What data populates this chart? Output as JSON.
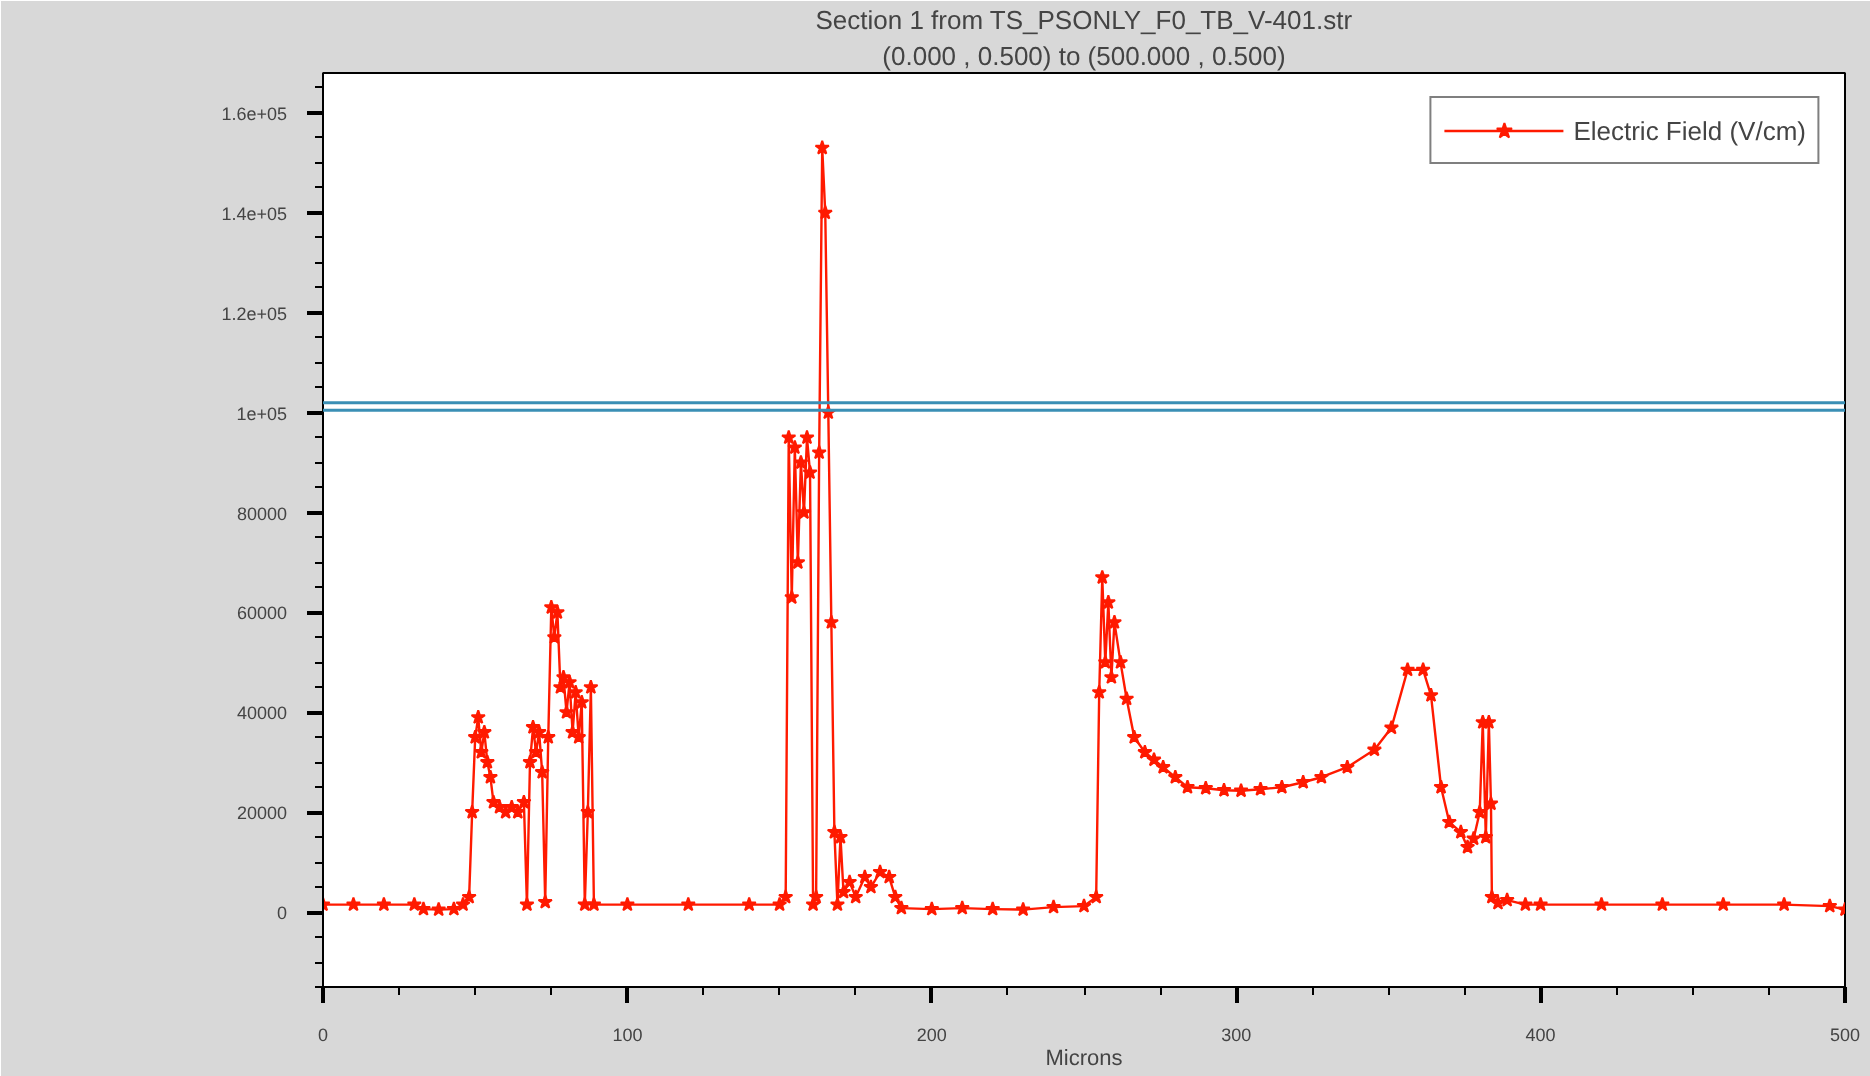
{
  "chart_data": {
    "type": "line",
    "title": "Section 1 from TS_PSONLY_F0_TB_V-401.str",
    "subtitle": "(0.000 , 0.500) to (500.000 , 0.500)",
    "xlabel": "Microns",
    "series": [
      {
        "name": "Electric Field (V/cm)",
        "color": "#ff1a00",
        "x": [
          0,
          10,
          20,
          30,
          33,
          38,
          43,
          46,
          48,
          49,
          50,
          51,
          52,
          53,
          54,
          55,
          56,
          58,
          60,
          62,
          64,
          66,
          67,
          68,
          69,
          70,
          71,
          72,
          73,
          74,
          75,
          76,
          77,
          78,
          79,
          80,
          81,
          82,
          83,
          84,
          85,
          86,
          87,
          88,
          89,
          100,
          120,
          140,
          150,
          152,
          153,
          154,
          155,
          156,
          157,
          158,
          159,
          160,
          161,
          162,
          163,
          164,
          165,
          166,
          167,
          168,
          169,
          170,
          171,
          173,
          175,
          178,
          180,
          183,
          186,
          188,
          190,
          200,
          210,
          220,
          230,
          240,
          250,
          254,
          255,
          256,
          257,
          258,
          259,
          260,
          262,
          264,
          266.5,
          270,
          273,
          276,
          280,
          284,
          290,
          296,
          301.6,
          308,
          315,
          322,
          328,
          336.5,
          345.4,
          351,
          356.3,
          361.4,
          364,
          367.3,
          370,
          373.8,
          376,
          378,
          380,
          381,
          382,
          383,
          383.7,
          384,
          386,
          389,
          395,
          400,
          420,
          440,
          460,
          480,
          495,
          500
        ],
        "values": [
          1500,
          1500,
          1500,
          1500,
          600,
          500,
          600,
          1500,
          3000,
          20000,
          35000,
          39000,
          32000,
          36000,
          30000,
          27000,
          22000,
          21000,
          20000,
          21000,
          20000,
          22000,
          1500,
          30000,
          37000,
          32000,
          36000,
          28000,
          2000,
          35000,
          61000,
          55000,
          60000,
          45000,
          47000,
          40000,
          46000,
          36000,
          44000,
          35000,
          42000,
          1500,
          20000,
          45000,
          1500,
          1500,
          1500,
          1500,
          1500,
          3000,
          95000,
          63000,
          93000,
          70000,
          90000,
          80000,
          95000,
          88000,
          1500,
          3000,
          92000,
          153000,
          140000,
          100000,
          58000,
          16000,
          1500,
          15000,
          4000,
          6000,
          3000,
          7000,
          5000,
          8000,
          7000,
          3000,
          800,
          600,
          800,
          600,
          500,
          1000,
          1200,
          3000,
          44000,
          67000,
          50000,
          62000,
          47000,
          58000,
          50000,
          42700,
          35000,
          32000,
          30500,
          29000,
          27000,
          25000,
          24800,
          24400,
          24300,
          24600,
          25000,
          26000,
          27000,
          29000,
          32500,
          36900,
          48500,
          48500,
          43400,
          25000,
          18000,
          16000,
          13000,
          14700,
          20000,
          38000,
          15000,
          38000,
          21700,
          3000,
          1800,
          2400,
          1500,
          1500,
          1500,
          1500,
          1500,
          1500,
          1200,
          500
        ]
      }
    ],
    "marker": "star",
    "line_style": "solid",
    "legend": "top right",
    "grid": false,
    "xlim": [
      0,
      500
    ],
    "xticks": [
      0,
      100,
      200,
      300,
      400,
      500
    ],
    "ylim": [
      -15000,
      168000
    ],
    "yticks": [
      0,
      20000,
      40000,
      60000,
      80000,
      {
        "value": 100000,
        "label": "1e+05"
      },
      {
        "value": 120000,
        "label": "1.2e+05"
      },
      {
        "value": 140000,
        "label": "1.4e+05"
      },
      {
        "value": 160000,
        "label": "1.6e+05"
      }
    ],
    "ref_lines": [
      {
        "axis": "y",
        "value": 102000,
        "color": "#3a8fb5"
      },
      {
        "axis": "y",
        "value": 100500,
        "color": "#3a8fb5"
      }
    ]
  }
}
